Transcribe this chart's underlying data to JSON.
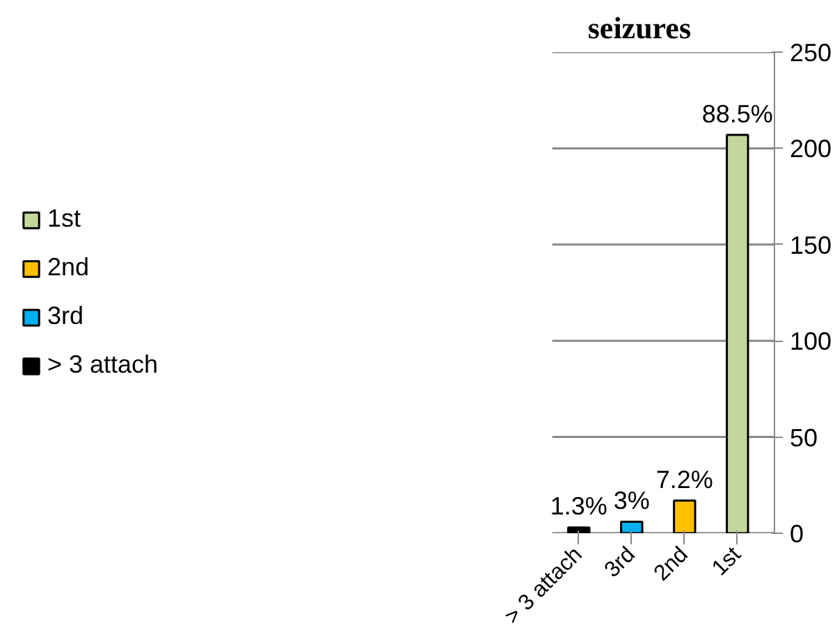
{
  "chart_data": {
    "type": "bar",
    "title": "seizures",
    "categories": [
      "> 3 attach",
      "3rd",
      "2nd",
      "1st"
    ],
    "series": [
      {
        "name": "1st",
        "color": "#c4d79b",
        "values": [
          null,
          null,
          null,
          207
        ]
      },
      {
        "name": "2nd",
        "color": "#ffc000",
        "values": [
          null,
          null,
          17,
          null
        ]
      },
      {
        "name": "3rd",
        "color": "#00b0f0",
        "values": [
          null,
          6,
          null,
          null
        ]
      },
      {
        "name": "> 3 attach",
        "color": "#000000",
        "values": [
          3,
          null,
          null,
          null
        ]
      }
    ],
    "annotations": [
      {
        "text": "1.3%",
        "x": "> 3 attach",
        "y": 3
      },
      {
        "text": "3%",
        "x": "3rd",
        "y": 6
      },
      {
        "text": "7.2%",
        "x": "2nd",
        "y": 17
      },
      {
        "text": "88.5%",
        "x": "1st",
        "y": 207
      }
    ],
    "ylim": [
      0,
      250
    ],
    "yticks": [
      0,
      50,
      100,
      150,
      200,
      250
    ],
    "grid": "y",
    "legend": "left"
  }
}
